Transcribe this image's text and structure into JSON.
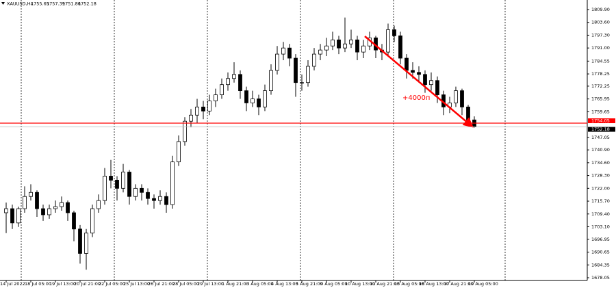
{
  "chart_data": {
    "type": "candlestick",
    "symbol": "XAUUSD,H4",
    "categories": [
      "14 Jul 2022",
      null,
      null,
      null,
      "18 Jul 05:00",
      null,
      null,
      null,
      "19 Jul 13:00",
      null,
      null,
      null,
      "20 Jul 21:00",
      null,
      null,
      null,
      "22 Jul 05:00",
      null,
      null,
      null,
      "25 Jul 13:00",
      null,
      null,
      null,
      "26 Jul 21:00",
      null,
      null,
      null,
      "28 Jul 05:00",
      null,
      null,
      null,
      "29 Jul 13:00",
      null,
      null,
      null,
      "1 Aug 21:00",
      null,
      null,
      null,
      "3 Aug 05:00",
      null,
      null,
      null,
      "4 Aug 13:00",
      null,
      null,
      null,
      "5 Aug 21:00",
      null,
      null,
      null,
      "9 Aug 05:00",
      null,
      null,
      null,
      "10 Aug 13:00",
      null,
      null,
      null,
      "11 Aug 21:00",
      null,
      null,
      null,
      "15 Aug 05:00",
      null,
      null,
      null,
      "16 Aug 13:00",
      null,
      null,
      null,
      "17 Aug 21:00",
      null,
      null,
      null,
      "19 Aug 05:00"
    ],
    "candles": [
      [
        1710,
        1715,
        1700,
        1712
      ],
      [
        1712,
        1714,
        1702,
        1705
      ],
      [
        1705,
        1713,
        1703,
        1712
      ],
      [
        1712,
        1723,
        1710,
        1718
      ],
      [
        1718,
        1724,
        1716,
        1720
      ],
      [
        1720,
        1721,
        1708,
        1712
      ],
      [
        1712,
        1714,
        1706,
        1709
      ],
      [
        1709,
        1714,
        1707,
        1712
      ],
      [
        1712,
        1716,
        1710,
        1713
      ],
      [
        1713,
        1718,
        1711,
        1715
      ],
      [
        1715,
        1716,
        1706,
        1710
      ],
      [
        1710,
        1711,
        1696,
        1702
      ],
      [
        1702,
        1704,
        1685,
        1690
      ],
      [
        1690,
        1702,
        1682,
        1700
      ],
      [
        1700,
        1714,
        1698,
        1712
      ],
      [
        1712,
        1719,
        1710,
        1716
      ],
      [
        1716,
        1732,
        1714,
        1728
      ],
      [
        1728,
        1736,
        1722,
        1726
      ],
      [
        1726,
        1728,
        1716,
        1722
      ],
      [
        1722,
        1734,
        1720,
        1730
      ],
      [
        1730,
        1731,
        1714,
        1718
      ],
      [
        1718,
        1724,
        1716,
        1722
      ],
      [
        1722,
        1724,
        1716,
        1720
      ],
      [
        1720,
        1722,
        1714,
        1717
      ],
      [
        1717,
        1719,
        1712,
        1716
      ],
      [
        1716,
        1721,
        1714,
        1718
      ],
      [
        1718,
        1720,
        1710,
        1714
      ],
      [
        1714,
        1738,
        1712,
        1735
      ],
      [
        1735,
        1748,
        1733,
        1745
      ],
      [
        1745,
        1757,
        1743,
        1755
      ],
      [
        1755,
        1761,
        1752,
        1758
      ],
      [
        1758,
        1766,
        1754,
        1762
      ],
      [
        1762,
        1765,
        1756,
        1760
      ],
      [
        1760,
        1768,
        1758,
        1765
      ],
      [
        1765,
        1771,
        1762,
        1768
      ],
      [
        1768,
        1776,
        1766,
        1773
      ],
      [
        1773,
        1779,
        1770,
        1776
      ],
      [
        1776,
        1784,
        1774,
        1778
      ],
      [
        1778,
        1780,
        1766,
        1770
      ],
      [
        1770,
        1772,
        1760,
        1764
      ],
      [
        1764,
        1770,
        1762,
        1766
      ],
      [
        1766,
        1768,
        1758,
        1762
      ],
      [
        1762,
        1773,
        1760,
        1770
      ],
      [
        1770,
        1783,
        1768,
        1780
      ],
      [
        1780,
        1792,
        1778,
        1788
      ],
      [
        1788,
        1794,
        1785,
        1791
      ],
      [
        1791,
        1793,
        1782,
        1786
      ],
      [
        1786,
        1788,
        1767,
        1774
      ],
      [
        1774,
        1778,
        1770,
        1774
      ],
      [
        1774,
        1785,
        1772,
        1782
      ],
      [
        1782,
        1791,
        1780,
        1788
      ],
      [
        1788,
        1793,
        1785,
        1790
      ],
      [
        1790,
        1796,
        1787,
        1792
      ],
      [
        1792,
        1799,
        1790,
        1795
      ],
      [
        1795,
        1797,
        1788,
        1791
      ],
      [
        1791,
        1806,
        1789,
        1793
      ],
      [
        1793,
        1800,
        1791,
        1795
      ],
      [
        1795,
        1797,
        1785,
        1789
      ],
      [
        1789,
        1795,
        1786,
        1792
      ],
      [
        1792,
        1799,
        1790,
        1796
      ],
      [
        1796,
        1797,
        1786,
        1790
      ],
      [
        1790,
        1793,
        1785,
        1789
      ],
      [
        1789,
        1803,
        1787,
        1800
      ],
      [
        1800,
        1802,
        1794,
        1797
      ],
      [
        1797,
        1799,
        1783,
        1786
      ],
      [
        1786,
        1788,
        1776,
        1780
      ],
      [
        1780,
        1784,
        1776,
        1779
      ],
      [
        1779,
        1782,
        1774,
        1778
      ],
      [
        1778,
        1780,
        1769,
        1773
      ],
      [
        1773,
        1779,
        1770,
        1775
      ],
      [
        1775,
        1777,
        1764,
        1768
      ],
      [
        1768,
        1770,
        1758,
        1762
      ],
      [
        1762,
        1767,
        1759,
        1764
      ],
      [
        1764,
        1772,
        1762,
        1770
      ],
      [
        1770,
        1771,
        1758,
        1762
      ],
      [
        1762,
        1763,
        1753,
        1755.65
      ],
      [
        1755.65,
        1757.39,
        1751.86,
        1752.18
      ]
    ],
    "ylim": [
      1676.7,
      1814.6
    ],
    "yticks": [
      {
        "value": 1809.9,
        "label": "1809.90"
      },
      {
        "value": 1803.6,
        "label": "1803.60"
      },
      {
        "value": 1797.3,
        "label": "1797.30"
      },
      {
        "value": 1791,
        "label": "1791.00"
      },
      {
        "value": 1784.55,
        "label": "1784.55"
      },
      {
        "value": 1778.25,
        "label": "1778.25"
      },
      {
        "value": 1772.25,
        "label": "1772.25"
      },
      {
        "value": 1765.95,
        "label": "1765.95"
      },
      {
        "value": 1759.65,
        "label": "1759.65"
      },
      {
        "value": 1747.05,
        "label": "1747.05"
      },
      {
        "value": 1740.9,
        "label": "1740.90"
      },
      {
        "value": 1734.6,
        "label": "1734.60"
      },
      {
        "value": 1728.3,
        "label": "1728.30"
      },
      {
        "value": 1722,
        "label": "1722.00"
      },
      {
        "value": 1715.7,
        "label": "1715.70"
      },
      {
        "value": 1709.4,
        "label": "1709.40"
      },
      {
        "value": 1703.1,
        "label": "1703.10"
      },
      {
        "value": 1696.95,
        "label": "1696.95"
      },
      {
        "value": 1690.65,
        "label": "1690.65"
      },
      {
        "value": 1684.35,
        "label": "1684.35"
      },
      {
        "value": 1678.05,
        "label": "1678.05"
      }
    ],
    "price_lines": [
      {
        "value": 1754.05,
        "label": "1754.05",
        "color": "#ff0000"
      },
      {
        "value": 1752.18,
        "label": "1752.18",
        "color": "#c0c0c0"
      }
    ],
    "annotation": "+4000п"
  }
}
